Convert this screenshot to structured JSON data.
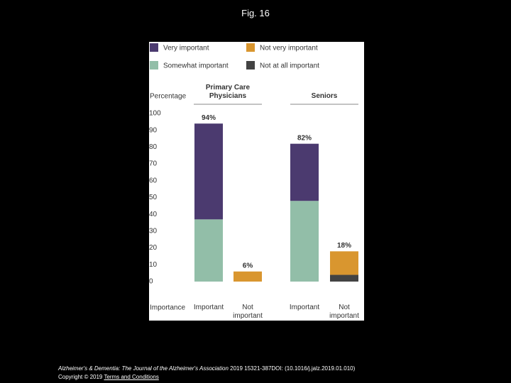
{
  "slide_title": "Fig. 16",
  "chart_data": {
    "type": "stacked-bar",
    "ylabel": "Percentage",
    "xlabel": "Importance",
    "groups": [
      "Primary Care Physicians",
      "Seniors"
    ],
    "categories": [
      "Important",
      "Not important",
      "Important",
      "Not important"
    ],
    "series": [
      {
        "name": "Very important",
        "color": "#4b3a6f",
        "values": [
          57,
          null,
          34,
          null
        ]
      },
      {
        "name": "Not very important",
        "color": "#d9962f",
        "values": [
          null,
          6,
          null,
          14
        ]
      },
      {
        "name": "Somewhat important",
        "color": "#92bea8",
        "values": [
          37,
          null,
          48,
          null
        ]
      },
      {
        "name": "Not at all important",
        "color": "#434343",
        "values": [
          null,
          null,
          null,
          4
        ]
      }
    ],
    "totals": {
      "values": [
        94,
        6,
        82,
        18
      ],
      "value_labels": [
        "94%",
        "6%",
        "82%",
        "18%"
      ]
    },
    "ylim": [
      0,
      100
    ],
    "yticks": [
      0,
      10,
      20,
      30,
      40,
      50,
      60,
      70,
      80,
      90,
      100
    ],
    "grid": false
  },
  "footer": {
    "journal": "Alzheimer's & Dementia: The Journal of the Alzheimer's Association",
    "citation": " 2019 15321-387DOI: (10.1016/j.jalz.2019.01.010)",
    "copyright": "Copyright © 2019 ",
    "link": "Terms and Conditions"
  }
}
